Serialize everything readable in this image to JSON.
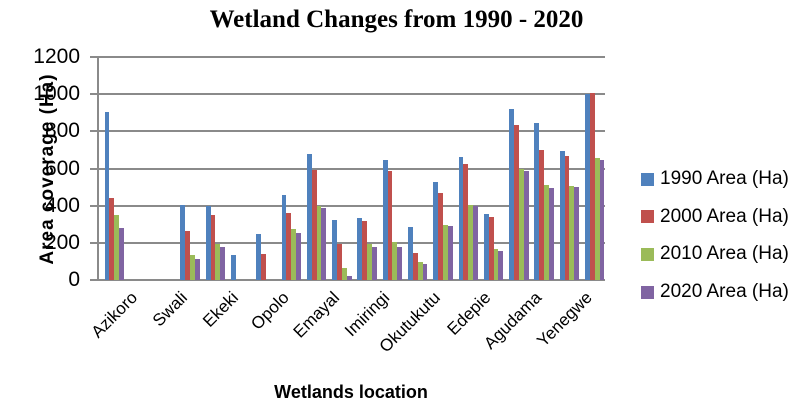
{
  "chart_data": {
    "type": "bar",
    "title": "Wetland Changes from 1990 - 2020",
    "xlabel": "Wetlands location",
    "ylabel": "Area coverage (Ha)",
    "ylim": [
      0,
      1200
    ],
    "yticks": [
      0,
      200,
      400,
      600,
      800,
      1000,
      1200
    ],
    "grid": true,
    "legend_position": "right",
    "series": [
      {
        "name": "1990 Area (Ha)",
        "color": "#4F81BD"
      },
      {
        "name": "2000 Area (Ha)",
        "color": "#C0504D"
      },
      {
        "name": "2010 Area (Ha)",
        "color": "#9BBB59"
      },
      {
        "name": "2020 Area (Ha)",
        "color": "#8064A2"
      }
    ],
    "groups": [
      {
        "label": "Azikoro",
        "values": [
          905,
          440,
          350,
          278
        ]
      },
      {
        "label": null,
        "values": [
          null,
          null,
          null,
          null
        ]
      },
      {
        "label": "Swali",
        "values": [
          null,
          null,
          null,
          null
        ]
      },
      {
        "label": null,
        "values": [
          405,
          262,
          135,
          112
        ]
      },
      {
        "label": "Ekeki",
        "values": [
          400,
          350,
          193,
          180
        ]
      },
      {
        "label": null,
        "values": [
          135,
          null,
          null,
          null
        ]
      },
      {
        "label": "Opolo",
        "values": [
          245,
          140,
          null,
          null
        ]
      },
      {
        "label": null,
        "values": [
          455,
          363,
          275,
          255
        ]
      },
      {
        "label": "Emayal",
        "values": [
          680,
          593,
          400,
          385
        ]
      },
      {
        "label": null,
        "values": [
          325,
          195,
          63,
          20
        ]
      },
      {
        "label": "Imiringi",
        "values": [
          335,
          315,
          195,
          178
        ]
      },
      {
        "label": null,
        "values": [
          645,
          585,
          202,
          176
        ]
      },
      {
        "label": "Okutukutu",
        "values": [
          287,
          146,
          96,
          86
        ]
      },
      {
        "label": null,
        "values": [
          527,
          470,
          296,
          290
        ]
      },
      {
        "label": "Edepie",
        "values": [
          660,
          625,
          405,
          400
        ]
      },
      {
        "label": null,
        "values": [
          356,
          340,
          166,
          156
        ]
      },
      {
        "label": "Agudama",
        "values": [
          920,
          835,
          598,
          586
        ]
      },
      {
        "label": null,
        "values": [
          845,
          698,
          510,
          494
        ]
      },
      {
        "label": "Yenegwe",
        "values": [
          695,
          665,
          506,
          500
        ]
      },
      {
        "label": null,
        "values": [
          1000,
          1007,
          654,
          646
        ]
      }
    ]
  }
}
